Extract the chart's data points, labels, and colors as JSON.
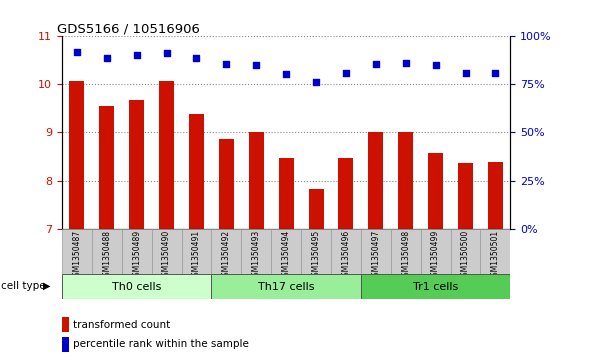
{
  "title": "GDS5166 / 10516906",
  "samples": [
    "GSM1350487",
    "GSM1350488",
    "GSM1350489",
    "GSM1350490",
    "GSM1350491",
    "GSM1350492",
    "GSM1350493",
    "GSM1350494",
    "GSM1350495",
    "GSM1350496",
    "GSM1350497",
    "GSM1350498",
    "GSM1350499",
    "GSM1350500",
    "GSM1350501"
  ],
  "transformed_count": [
    10.07,
    9.55,
    9.67,
    10.08,
    9.38,
    8.87,
    9.0,
    8.47,
    7.82,
    8.47,
    9.02,
    9.0,
    8.57,
    8.36,
    8.38
  ],
  "percentile_rank": [
    10.67,
    10.55,
    10.62,
    10.66,
    10.54,
    10.43,
    10.41,
    10.22,
    10.06,
    10.23,
    10.43,
    10.44,
    10.41,
    10.24,
    10.24
  ],
  "cell_types": [
    {
      "label": "Th0 cells",
      "start": 0,
      "end": 5,
      "color": "#ccffcc"
    },
    {
      "label": "Th17 cells",
      "start": 5,
      "end": 10,
      "color": "#99ee99"
    },
    {
      "label": "Tr1 cells",
      "start": 10,
      "end": 15,
      "color": "#55cc55"
    }
  ],
  "bar_color": "#cc1100",
  "dot_color": "#0000cc",
  "ylim_left": [
    7,
    11
  ],
  "ylim_right": [
    0,
    100
  ],
  "yticks_left": [
    7,
    8,
    9,
    10,
    11
  ],
  "yticks_right": [
    0,
    25,
    50,
    75,
    100
  ],
  "yticklabels_right": [
    "0%",
    "25%",
    "50%",
    "75%",
    "100%"
  ],
  "grid_color": "#888888",
  "bg_color": "#cccccc",
  "cell_type_label": "cell type",
  "legend_bar_label": "transformed count",
  "legend_dot_label": "percentile rank within the sample"
}
